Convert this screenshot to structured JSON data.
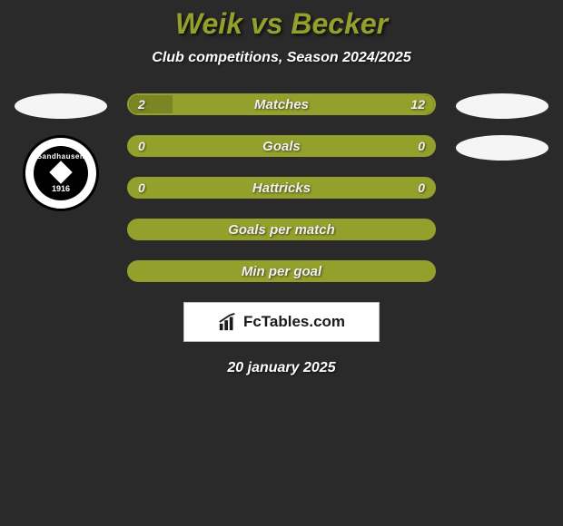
{
  "background_color": "#2a2a2a",
  "title": {
    "text": "Weik vs Becker",
    "color": "#93a02c",
    "fontsize": 32
  },
  "subtitle": {
    "text": "Club competitions, Season 2024/2025",
    "color": "#ffffff",
    "fontsize": 16
  },
  "accent_color": "#93a02c",
  "left_crest": {
    "top_text": "Sandhausen",
    "year": "1916"
  },
  "bars": [
    {
      "label": "Matches",
      "left_value": "2",
      "right_value": "12",
      "left_pct": 14.3,
      "right_pct": 85.7,
      "show_values": true,
      "border_color": "#93a02c",
      "left_color": "#7a8524",
      "right_color": "#93a02c",
      "bg_color": "#2a2a2a"
    },
    {
      "label": "Goals",
      "left_value": "0",
      "right_value": "0",
      "left_pct": 0,
      "right_pct": 0,
      "show_values": true,
      "border_color": "#93a02c",
      "left_color": "#7a8524",
      "right_color": "#93a02c",
      "bg_color": "#93a02c"
    },
    {
      "label": "Hattricks",
      "left_value": "0",
      "right_value": "0",
      "left_pct": 0,
      "right_pct": 0,
      "show_values": true,
      "border_color": "#93a02c",
      "left_color": "#7a8524",
      "right_color": "#93a02c",
      "bg_color": "#93a02c"
    },
    {
      "label": "Goals per match",
      "left_value": "",
      "right_value": "",
      "left_pct": 0,
      "right_pct": 0,
      "show_values": false,
      "border_color": "#93a02c",
      "left_color": "#7a8524",
      "right_color": "#93a02c",
      "bg_color": "#93a02c"
    },
    {
      "label": "Min per goal",
      "left_value": "",
      "right_value": "",
      "left_pct": 0,
      "right_pct": 0,
      "show_values": false,
      "border_color": "#93a02c",
      "left_color": "#7a8524",
      "right_color": "#93a02c",
      "bg_color": "#93a02c"
    }
  ],
  "brand": {
    "text": "FcTables.com",
    "bg_color": "#ffffff",
    "border_color": "#bfbfbf",
    "icon_color": "#1a1a1a"
  },
  "date": {
    "text": "20 january 2025",
    "color": "#ffffff",
    "fontsize": 16
  },
  "ellipse_color": "#f5f5f5"
}
